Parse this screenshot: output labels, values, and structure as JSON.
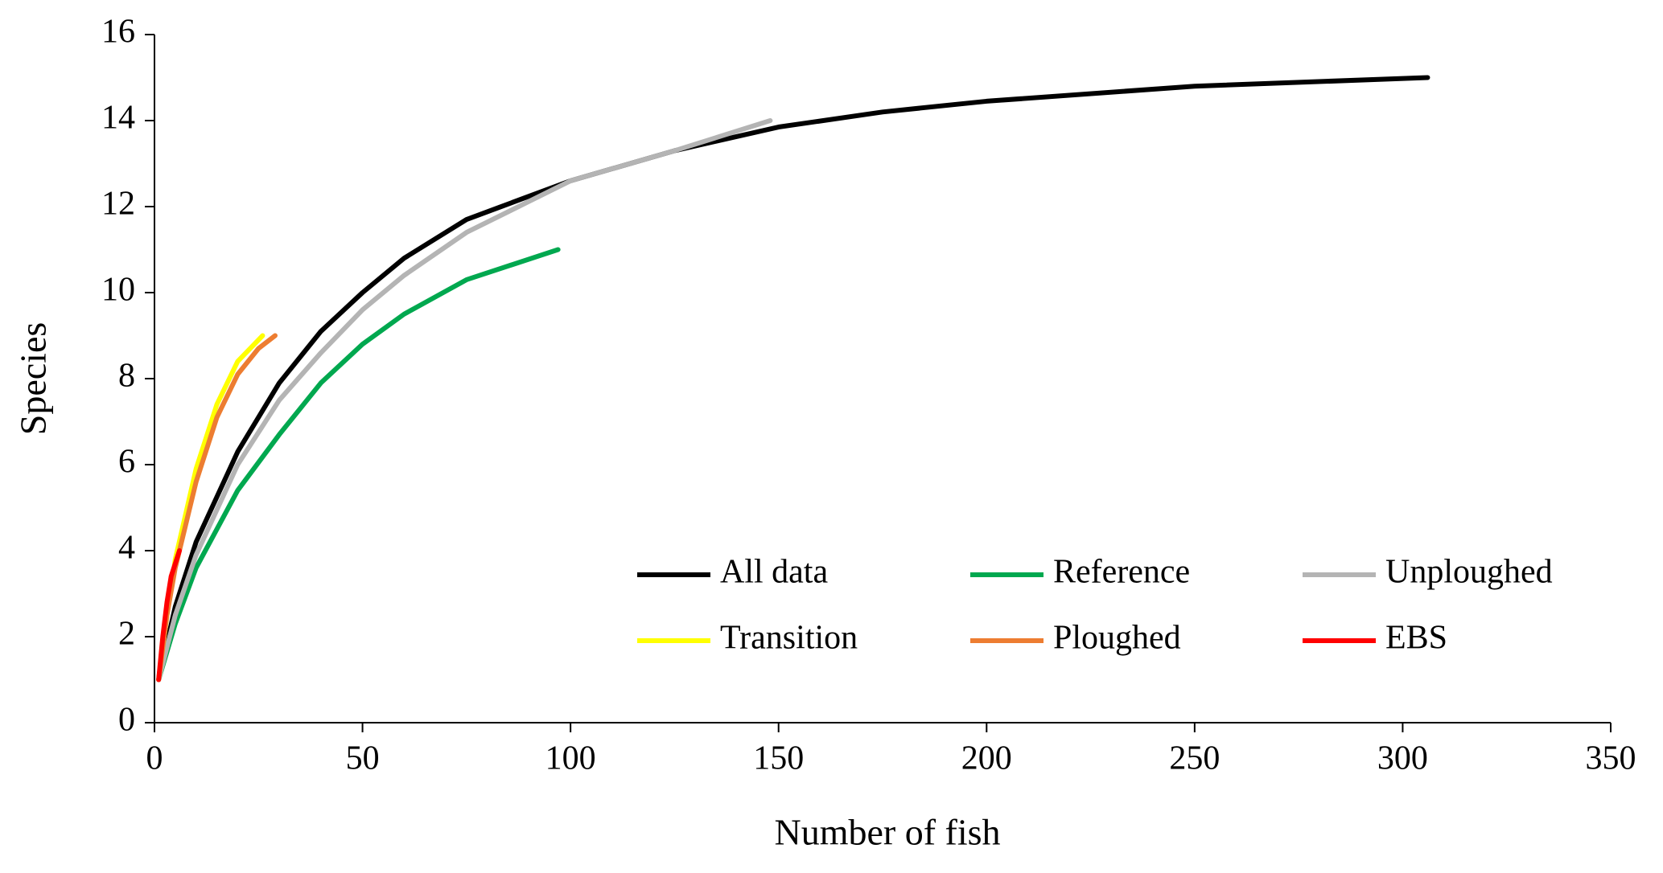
{
  "chart_data": {
    "type": "line",
    "x_label": "Number of fish",
    "y_label": "Species",
    "xlim": [
      0,
      350
    ],
    "ylim": [
      0,
      16
    ],
    "xticks": [
      0,
      50,
      100,
      150,
      200,
      250,
      300,
      350
    ],
    "yticks": [
      0,
      2,
      4,
      6,
      8,
      10,
      12,
      14,
      16
    ],
    "series": [
      {
        "name": "All data",
        "color": "#000000",
        "x": [
          1,
          5,
          10,
          20,
          30,
          40,
          50,
          60,
          75,
          100,
          125,
          150,
          175,
          200,
          250,
          306
        ],
        "values": [
          1,
          2.7,
          4.2,
          6.3,
          7.9,
          9.1,
          10.0,
          10.8,
          11.7,
          12.6,
          13.3,
          13.85,
          14.2,
          14.45,
          14.8,
          15
        ]
      },
      {
        "name": "Reference",
        "color": "#00a84f",
        "x": [
          1,
          5,
          10,
          20,
          30,
          40,
          50,
          60,
          75,
          97
        ],
        "values": [
          1,
          2.3,
          3.6,
          5.4,
          6.7,
          7.9,
          8.8,
          9.5,
          10.3,
          11
        ]
      },
      {
        "name": "Unploughed",
        "color": "#b4b4b4",
        "x": [
          1,
          5,
          10,
          20,
          30,
          40,
          50,
          60,
          75,
          100,
          125,
          148
        ],
        "values": [
          1,
          2.5,
          3.9,
          6.0,
          7.5,
          8.6,
          9.6,
          10.4,
          11.4,
          12.6,
          13.3,
          14
        ]
      },
      {
        "name": "Transition",
        "color": "#ffff00",
        "x": [
          1,
          3,
          5,
          10,
          15,
          20,
          26
        ],
        "values": [
          1,
          2.5,
          3.8,
          5.9,
          7.4,
          8.4,
          9
        ]
      },
      {
        "name": "Ploughed",
        "color": "#ed7d31",
        "x": [
          1,
          3,
          5,
          10,
          15,
          20,
          25,
          29
        ],
        "values": [
          1,
          2.5,
          3.6,
          5.6,
          7.1,
          8.1,
          8.7,
          9
        ]
      },
      {
        "name": "EBS",
        "color": "#ff0000",
        "x": [
          1,
          2,
          3,
          4,
          6
        ],
        "values": [
          1,
          2,
          2.8,
          3.4,
          4
        ]
      }
    ]
  }
}
